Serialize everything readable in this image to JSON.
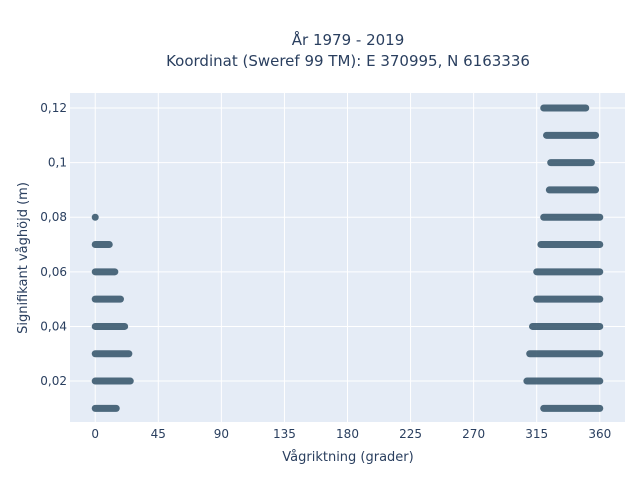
{
  "chart_data": {
    "type": "scatter",
    "title": [
      "År 1979 - 2019",
      "Koordinat (Sweref 99 TM): E 370995, N 6163336"
    ],
    "xlabel": "Vågriktning (grader)",
    "ylabel": "Signifikant våghöjd (m)",
    "xlim": [
      -18,
      378
    ],
    "ylim": [
      0.005,
      0.1255
    ],
    "x_ticks": [
      0,
      45,
      90,
      135,
      180,
      225,
      270,
      315,
      360
    ],
    "x_tick_labels": [
      "0",
      "45",
      "90",
      "135",
      "180",
      "225",
      "270",
      "315",
      "360"
    ],
    "y_ticks": [
      0.02,
      0.04,
      0.06,
      0.08,
      0.1,
      0.12
    ],
    "y_tick_labels": [
      "0,02",
      "0,04",
      "0,06",
      "0,08",
      "0,1",
      "0,12"
    ],
    "grid": true,
    "marker_color": "#3b5a6f",
    "background_color": "#e5ecf6",
    "series": [
      {
        "clusters": [
          {
            "y": 0.12,
            "x": [
              320,
              350
            ]
          },
          {
            "y": 0.11,
            "x": [
              322,
              357
            ]
          },
          {
            "y": 0.1,
            "x": [
              325,
              354
            ]
          },
          {
            "y": 0.09,
            "x": [
              324,
              357
            ]
          },
          {
            "y": 0.08,
            "x": [
              0,
              0
            ]
          },
          {
            "y": 0.08,
            "x": [
              320,
              360
            ]
          },
          {
            "y": 0.07,
            "x": [
              0,
              10
            ]
          },
          {
            "y": 0.07,
            "x": [
              318,
              360
            ]
          },
          {
            "y": 0.06,
            "x": [
              0,
              14
            ]
          },
          {
            "y": 0.06,
            "x": [
              315,
              360
            ]
          },
          {
            "y": 0.05,
            "x": [
              0,
              18
            ]
          },
          {
            "y": 0.05,
            "x": [
              315,
              360
            ]
          },
          {
            "y": 0.04,
            "x": [
              0,
              21
            ]
          },
          {
            "y": 0.04,
            "x": [
              312,
              360
            ]
          },
          {
            "y": 0.03,
            "x": [
              0,
              24
            ]
          },
          {
            "y": 0.03,
            "x": [
              310,
              360
            ]
          },
          {
            "y": 0.02,
            "x": [
              0,
              25
            ]
          },
          {
            "y": 0.02,
            "x": [
              308,
              360
            ]
          },
          {
            "y": 0.01,
            "x": [
              0,
              15
            ]
          },
          {
            "y": 0.01,
            "x": [
              320,
              360
            ]
          }
        ]
      }
    ]
  }
}
